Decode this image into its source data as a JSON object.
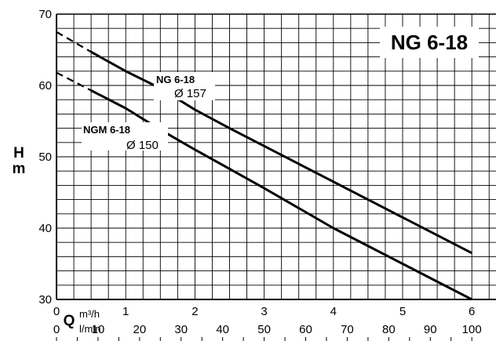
{
  "chart_data": {
    "type": "line",
    "title": "NG 6-18",
    "ylabel": "H",
    "ylabel_unit": "m",
    "xlabel": "Q",
    "x_unit_primary": "m³/h",
    "x_unit_secondary": "l/min",
    "xlim": [
      0,
      6.25
    ],
    "ylim": [
      30,
      70
    ],
    "x_ticks_m3h": [
      "0",
      "1",
      "2",
      "3",
      "4",
      "5",
      "6"
    ],
    "x_ticks_lmin": [
      "0",
      "10",
      "20",
      "30",
      "40",
      "50",
      "60",
      "70",
      "80",
      "90",
      "100"
    ],
    "y_ticks": [
      "30",
      "40",
      "50",
      "60",
      "70"
    ],
    "grid": true,
    "series": [
      {
        "name": "NG 6-18",
        "annotation": "Ø 157",
        "dashed_segment": {
          "x": [
            0,
            0.5
          ],
          "y": [
            67.5,
            64.7
          ]
        },
        "x": [
          0.5,
          1,
          1.5,
          2,
          2.5,
          3,
          3.5,
          4,
          4.5,
          5,
          5.5,
          6
        ],
        "y": [
          64.7,
          62.0,
          59.6,
          56.6,
          54.0,
          51.5,
          49.0,
          46.5,
          44.0,
          41.5,
          39.0,
          36.5
        ]
      },
      {
        "name": "NGM 6-18",
        "annotation": "Ø 150",
        "dashed_segment": {
          "x": [
            0,
            0.5
          ],
          "y": [
            61.8,
            59.3
          ]
        },
        "x": [
          0.5,
          1,
          1.5,
          2,
          2.5,
          3,
          3.5,
          4,
          4.5,
          5,
          5.5,
          6
        ],
        "y": [
          59.3,
          56.8,
          53.8,
          51.0,
          48.3,
          45.6,
          42.8,
          40.0,
          37.5,
          35.0,
          32.5,
          30.0
        ]
      }
    ]
  }
}
